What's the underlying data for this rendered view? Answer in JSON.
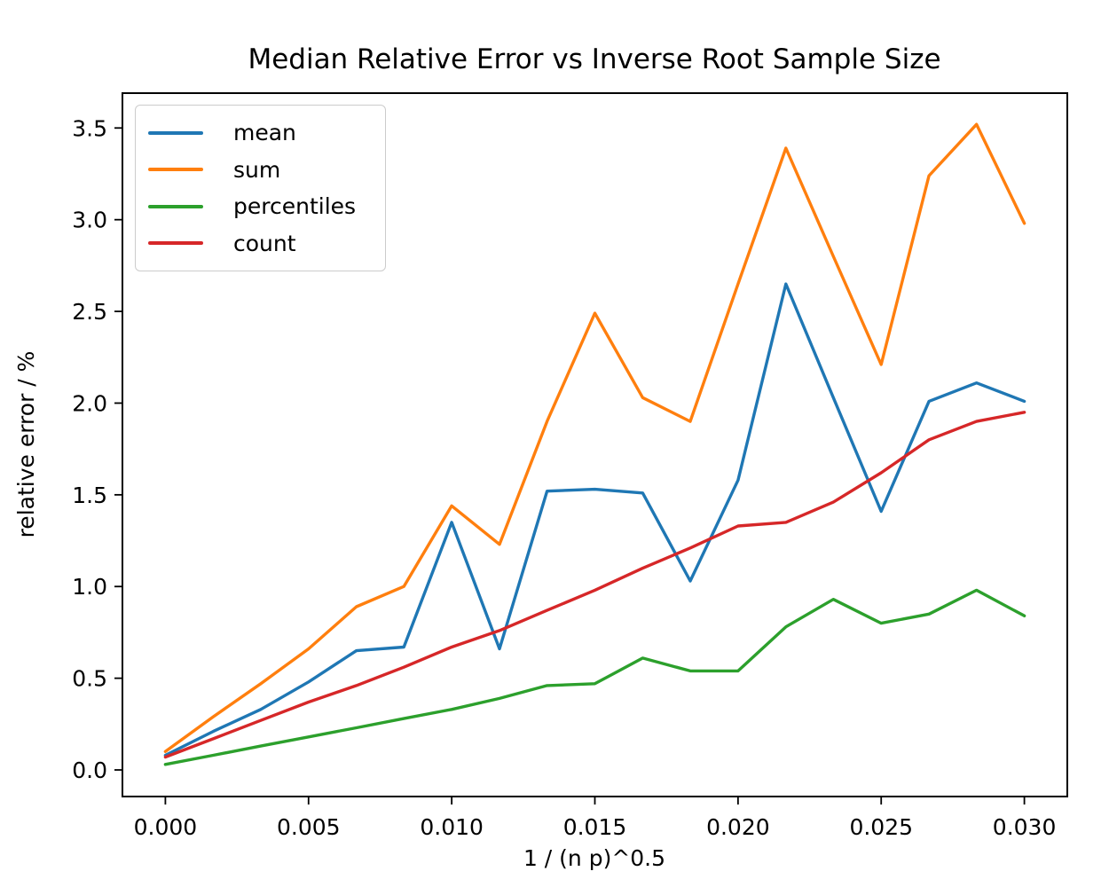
{
  "figure": {
    "background": "#ffffff",
    "axis_color": "#000000",
    "legend_border_color": "#cccccc"
  },
  "chart_data": {
    "type": "line",
    "title": "Median Relative Error vs Inverse Root Sample Size",
    "xlabel": "1 / (n p)^0.5",
    "ylabel": "relative error / %",
    "grid": false,
    "legend_position": "upper left",
    "xlim": [
      -0.0015,
      0.0315
    ],
    "ylim": [
      -0.145,
      3.69
    ],
    "xticks": {
      "values": [
        0.0,
        0.005,
        0.01,
        0.015,
        0.02,
        0.025,
        0.03
      ],
      "labels": [
        "0.000",
        "0.005",
        "0.010",
        "0.015",
        "0.020",
        "0.025",
        "0.030"
      ]
    },
    "yticks": {
      "values": [
        0.0,
        0.5,
        1.0,
        1.5,
        2.0,
        2.5,
        3.0,
        3.5
      ],
      "labels": [
        "0.0",
        "0.5",
        "1.0",
        "1.5",
        "2.0",
        "2.5",
        "3.0",
        "3.5"
      ]
    },
    "x": [
      0.0,
      0.00167,
      0.00333,
      0.005,
      0.00667,
      0.00833,
      0.01,
      0.01167,
      0.01333,
      0.015,
      0.01667,
      0.01833,
      0.02,
      0.02167,
      0.02333,
      0.025,
      0.02667,
      0.02833,
      0.03
    ],
    "series": [
      {
        "name": "mean",
        "color": "#1f77b4",
        "values": [
          0.08,
          0.21,
          0.33,
          0.48,
          0.65,
          0.67,
          1.35,
          0.66,
          1.52,
          1.53,
          1.51,
          1.03,
          1.58,
          2.65,
          2.03,
          1.41,
          2.01,
          2.11,
          2.01
        ]
      },
      {
        "name": "sum",
        "color": "#ff7f0e",
        "values": [
          0.1,
          0.29,
          0.47,
          0.66,
          0.89,
          1.0,
          1.44,
          1.23,
          1.9,
          2.49,
          2.03,
          1.9,
          2.65,
          3.39,
          2.8,
          2.21,
          3.24,
          3.52,
          2.98
        ]
      },
      {
        "name": "percentiles",
        "color": "#2ca02c",
        "values": [
          0.03,
          0.08,
          0.13,
          0.18,
          0.23,
          0.28,
          0.33,
          0.39,
          0.46,
          0.47,
          0.61,
          0.54,
          0.54,
          0.78,
          0.93,
          0.8,
          0.85,
          0.98,
          0.84
        ]
      },
      {
        "name": "count",
        "color": "#d62728",
        "values": [
          0.07,
          0.17,
          0.27,
          0.37,
          0.46,
          0.56,
          0.67,
          0.76,
          0.87,
          0.98,
          1.1,
          1.21,
          1.33,
          1.35,
          1.46,
          1.62,
          1.8,
          1.9,
          1.95
        ]
      }
    ]
  }
}
